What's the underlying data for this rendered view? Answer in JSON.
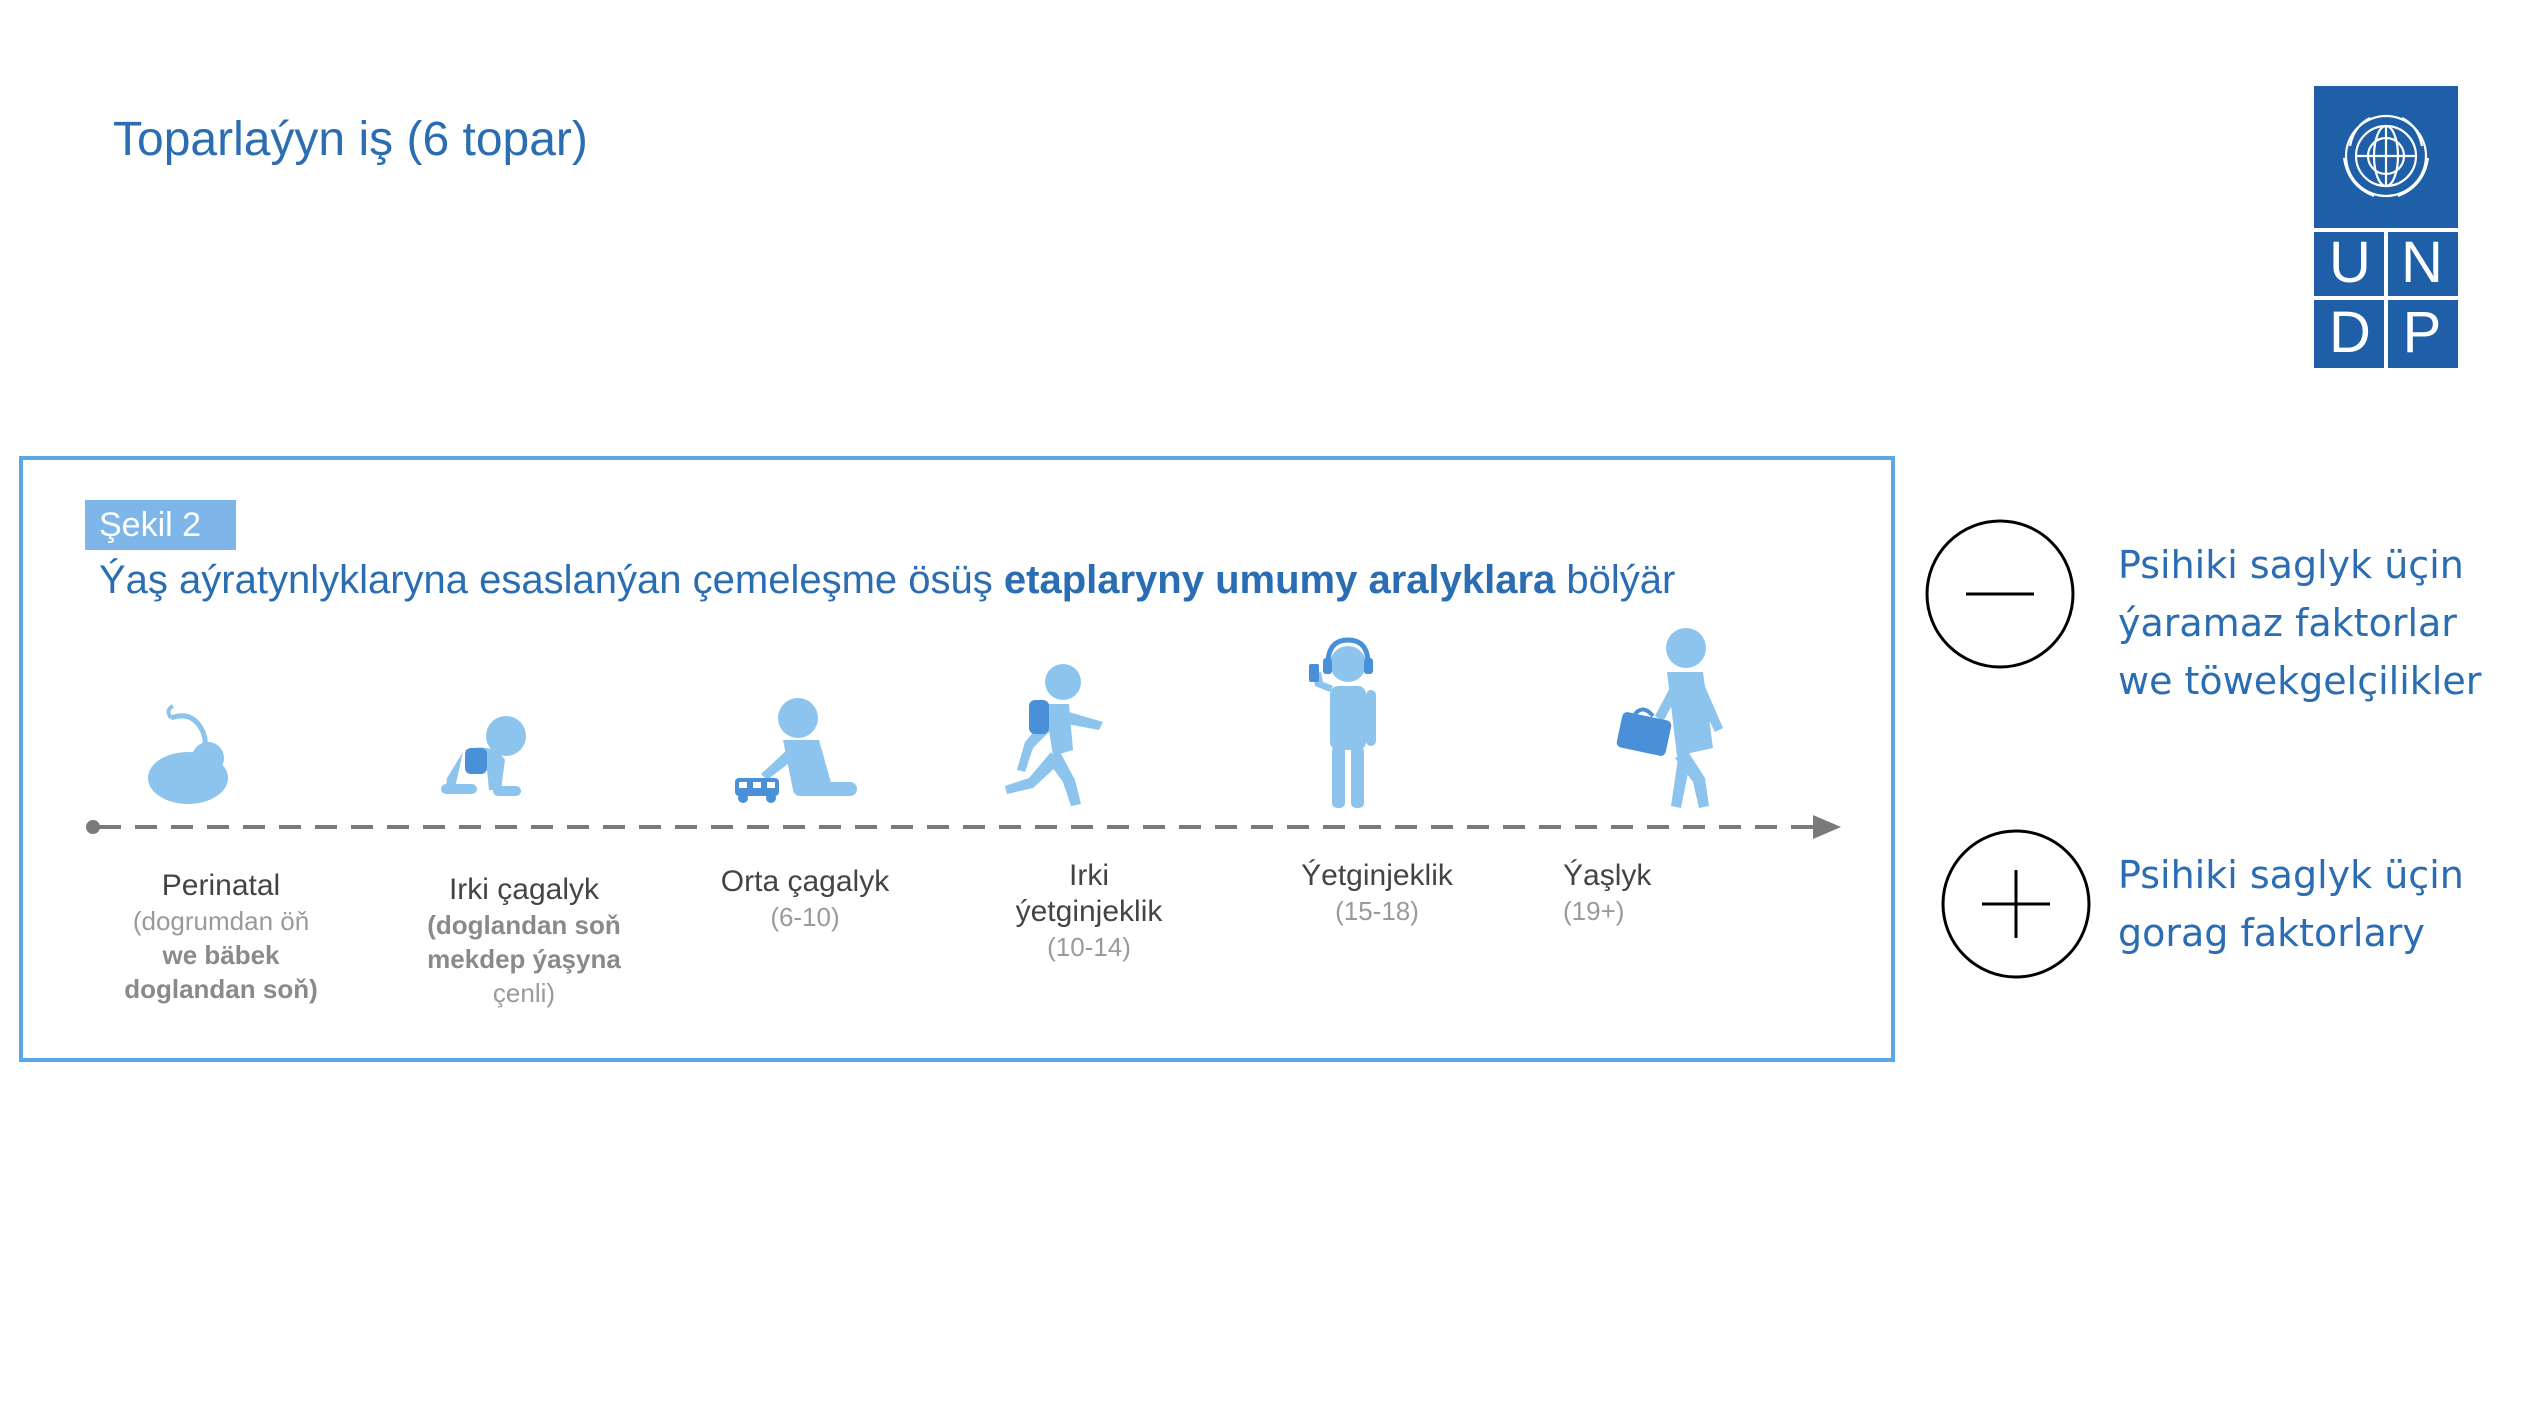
{
  "slide": {
    "title": "Toparlaýyn iş (6 topar)"
  },
  "logo": {
    "letters": [
      "U",
      "N",
      "D",
      "P"
    ]
  },
  "figure": {
    "tag": "Şekil 2",
    "subtitle_parts": [
      {
        "text": "Ýaş aýratynlyklaryna esaslanýan çemeleşme ösüş ",
        "bold": false
      },
      {
        "text": "etaplaryny umumy aralyklara",
        "bold": true
      },
      {
        "text": " bölýär",
        "bold": false
      }
    ],
    "stages": [
      {
        "name": "Perinatal",
        "sub": [
          "(dogrumdan öň",
          "we bäbek",
          "doglandan soň)"
        ]
      },
      {
        "name": "Irki çagalyk",
        "sub": [
          "(doglandan soň",
          "mekdep ýaşyna",
          "çenli)"
        ]
      },
      {
        "name": "Orta çagalyk",
        "sub": [
          "(6-10)"
        ]
      },
      {
        "name": "Irki ýetginjeklik",
        "sub": [
          "(10-14)"
        ]
      },
      {
        "name": "Ýetginjeklik",
        "sub": [
          "(15-18)"
        ]
      },
      {
        "name": "Ýaşlyk",
        "sub": [
          "(19+)"
        ]
      }
    ]
  },
  "factors": {
    "negative": {
      "icon": "minus-circle-icon",
      "lines": [
        "Psihiki saglyk üçin",
        "ýaramaz faktorlar",
        "we töwekgelçilikler"
      ]
    },
    "positive": {
      "icon": "plus-circle-icon",
      "lines": [
        "Psihiki saglyk üçin",
        "gorag faktorlary"
      ]
    }
  },
  "colors": {
    "accent": "#2a6db3",
    "figure_blue": "#8cc4ee",
    "box_border": "#5aa9e6",
    "undp_blue": "#1f5fa8"
  }
}
